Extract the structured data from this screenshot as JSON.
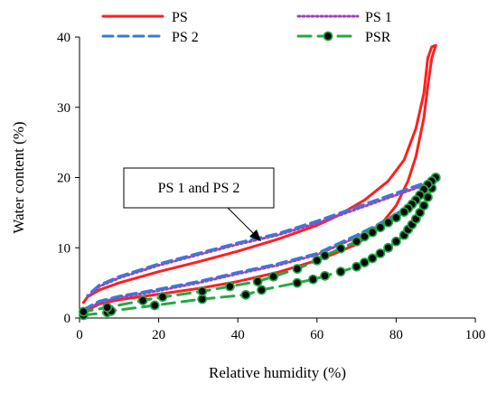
{
  "chart_data": {
    "type": "line",
    "title": "",
    "xlabel": "Relative humidity (%)",
    "ylabel": "Water content (%)",
    "xlim": [
      0,
      100
    ],
    "ylim": [
      0,
      40
    ],
    "xticks": [
      "0",
      "20",
      "40",
      "60",
      "80",
      "100"
    ],
    "yticks": [
      "0",
      "10",
      "20",
      "30",
      "40"
    ],
    "grid": false,
    "legend_placement": "top",
    "annotation": "PS 1 and PS 2",
    "colors": {
      "PS": "#ff1f1f",
      "PS 1": "#a040c0",
      "PS 2": "#3a78d8",
      "PSR": "#22aa44",
      "PSR_marker": "#0a0a0a"
    },
    "series": [
      {
        "name": "PS",
        "style": "solid",
        "sorption": {
          "x": [
            1,
            5,
            10,
            20,
            30,
            40,
            50,
            60,
            65,
            70,
            75,
            80,
            83,
            85,
            87,
            88,
            89,
            90
          ],
          "y": [
            0.8,
            2.0,
            2.6,
            3.4,
            4.2,
            5.2,
            6.5,
            8.2,
            9.3,
            10.5,
            12.5,
            16.0,
            19.5,
            23.0,
            28.5,
            33.0,
            37.0,
            38.8
          ]
        },
        "desorption": {
          "x": [
            90,
            89,
            88,
            87,
            85,
            82,
            78,
            72,
            65,
            60,
            50,
            40,
            30,
            20,
            10,
            5,
            2,
            1
          ],
          "y": [
            38.8,
            38.6,
            37.0,
            32.0,
            27.0,
            22.5,
            19.5,
            16.8,
            14.5,
            13.2,
            11.2,
            9.5,
            8.0,
            6.6,
            5.0,
            4.0,
            3.0,
            2.2
          ]
        }
      },
      {
        "name": "PS 1",
        "style": "dotted",
        "sorption": {
          "x": [
            1,
            5,
            10,
            20,
            30,
            40,
            50,
            60,
            70,
            75,
            80,
            85,
            88,
            90
          ],
          "y": [
            1.0,
            2.2,
            2.9,
            3.9,
            5.0,
            6.3,
            7.5,
            9.0,
            11.5,
            13.0,
            14.5,
            16.5,
            18.5,
            19.5
          ]
        },
        "desorption": {
          "x": [
            90,
            85,
            80,
            75,
            70,
            60,
            50,
            40,
            30,
            20,
            10,
            5,
            2
          ],
          "y": [
            19.5,
            18.5,
            17.5,
            16.5,
            15.5,
            13.5,
            11.8,
            10.5,
            9.0,
            7.5,
            5.7,
            4.5,
            3.0
          ]
        }
      },
      {
        "name": "PS 2",
        "style": "dashed",
        "sorption": {
          "x": [
            1,
            5,
            10,
            20,
            30,
            40,
            50,
            60,
            70,
            75,
            80,
            85,
            88,
            90
          ],
          "y": [
            1.2,
            2.4,
            3.1,
            4.1,
            5.2,
            6.5,
            7.7,
            9.2,
            11.8,
            13.2,
            14.8,
            16.8,
            18.8,
            19.8
          ]
        },
        "desorption": {
          "x": [
            90,
            85,
            80,
            75,
            70,
            60,
            50,
            40,
            30,
            20,
            10,
            5,
            2
          ],
          "y": [
            19.8,
            18.8,
            17.8,
            16.8,
            15.8,
            13.8,
            12.0,
            10.7,
            9.2,
            7.7,
            5.9,
            4.7,
            3.2
          ]
        }
      },
      {
        "name": "PSR",
        "style": "dashed-markers",
        "sorption": {
          "x": [
            1,
            7,
            8,
            19,
            31,
            42,
            46,
            55,
            59,
            62,
            66,
            70,
            72,
            74,
            76,
            78,
            80,
            82,
            83,
            84,
            85,
            86,
            87,
            88,
            89,
            90
          ],
          "y": [
            0.4,
            0.8,
            1.0,
            1.8,
            2.7,
            3.3,
            4.0,
            5.0,
            5.5,
            6.0,
            6.6,
            7.3,
            7.9,
            8.5,
            9.2,
            10.0,
            10.9,
            11.8,
            12.6,
            13.3,
            14.1,
            15.0,
            16.0,
            17.2,
            18.5,
            20.0
          ]
        },
        "desorption": {
          "x": [
            90,
            89,
            88,
            87,
            86,
            85,
            84,
            83,
            82,
            80,
            78,
            76,
            74,
            72,
            70,
            66,
            62,
            60,
            55,
            49,
            45,
            38,
            31,
            21,
            16,
            7,
            1
          ],
          "y": [
            20.0,
            19.5,
            19.0,
            18.3,
            17.5,
            16.8,
            16.2,
            15.6,
            15.1,
            14.3,
            13.6,
            12.9,
            12.2,
            11.6,
            10.9,
            9.9,
            8.9,
            8.2,
            7.0,
            5.9,
            5.2,
            4.5,
            3.8,
            3.0,
            2.5,
            1.5,
            0.9
          ]
        }
      }
    ]
  }
}
